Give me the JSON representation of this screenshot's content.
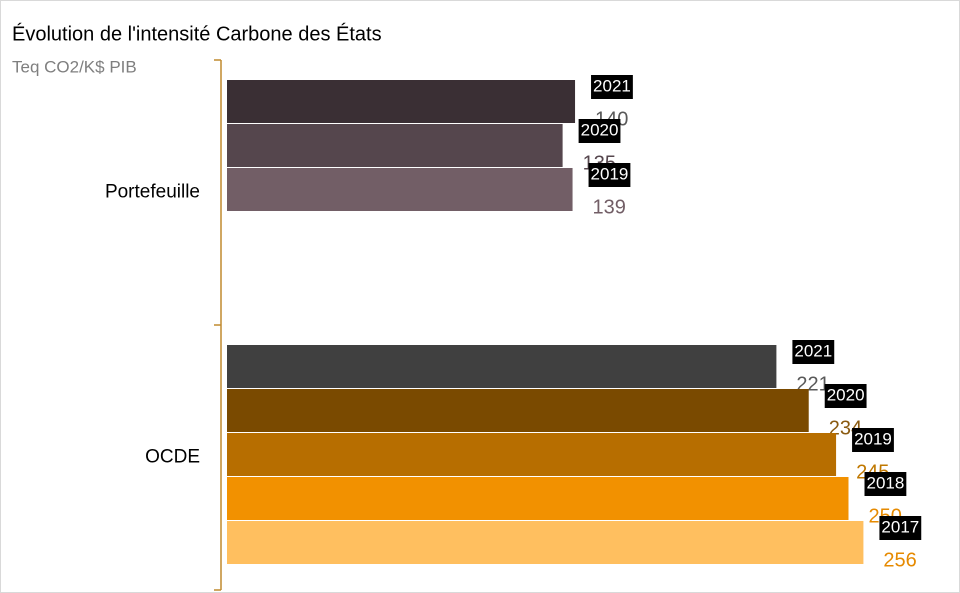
{
  "chart_data": {
    "type": "barh",
    "title": "Évolution de l'intensité Carbone des États",
    "subtitle": "Teq CO2/K$ PIB",
    "categories": [
      "Portefeuille",
      "OCDE"
    ],
    "series": [
      {
        "name": "2021",
        "colors": [
          "#3a2f34",
          "#404040"
        ],
        "label_colors": [
          "#595959",
          "#595959"
        ],
        "values": [
          140,
          221
        ]
      },
      {
        "name": "2020",
        "colors": [
          "#55464d",
          "#7a4a00"
        ],
        "label_colors": [
          "#55464d",
          "#8a5a10"
        ],
        "values": [
          135,
          234
        ]
      },
      {
        "name": "2019",
        "colors": [
          "#725e66",
          "#b76e00"
        ],
        "label_colors": [
          "#725e66",
          "#c07800"
        ],
        "values": [
          139,
          245
        ]
      },
      {
        "name": "2018",
        "colors": [
          null,
          "#f29100"
        ],
        "label_colors": [
          null,
          "#e68a00"
        ],
        "values": [
          null,
          250
        ]
      },
      {
        "name": "2017",
        "colors": [
          null,
          "#ffbf5f"
        ],
        "label_colors": [
          null,
          "#e68a00"
        ],
        "values": [
          null,
          256
        ]
      }
    ],
    "axis_color": "#c08a2f"
  }
}
